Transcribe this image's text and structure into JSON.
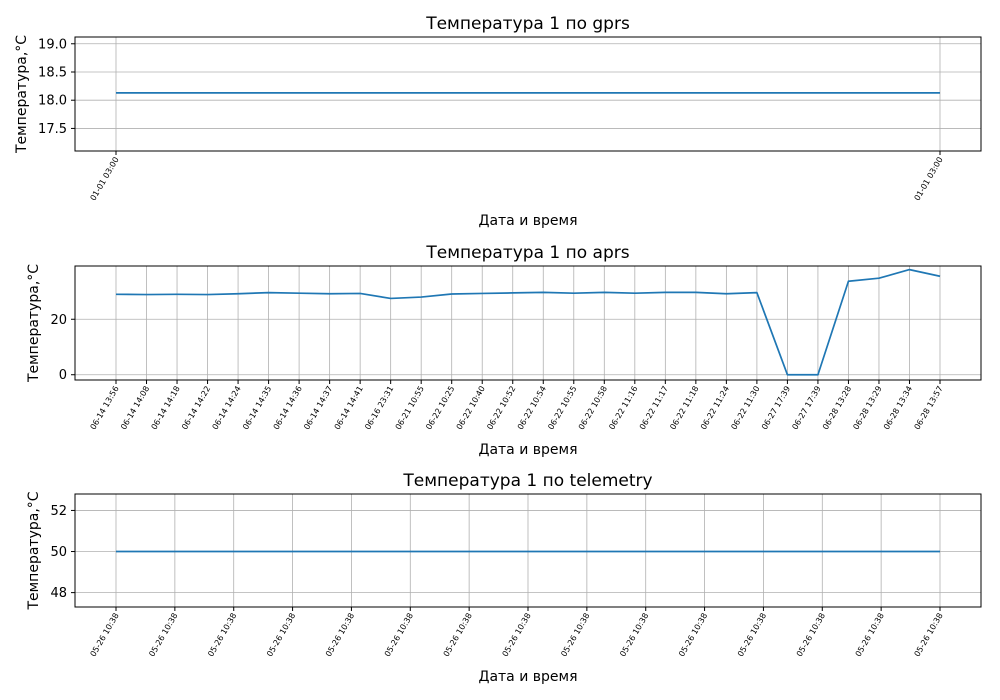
{
  "colors": {
    "series": "#1f77b4"
  },
  "chart_data": [
    {
      "type": "line",
      "title": "Температура 1 по gprs",
      "xlabel": "Дата и время",
      "ylabel": "Температура,°C",
      "x": [
        "01-01 03:00",
        "01-01 03:00"
      ],
      "series": [
        {
          "values": [
            18.13,
            18.13
          ]
        }
      ],
      "ylim": [
        17.1,
        19.12
      ],
      "yticks": [
        17.5,
        18.0,
        18.5,
        19.0
      ],
      "ytick_labels": [
        "17.5",
        "18.0",
        "18.5",
        "19.0"
      ],
      "grid": true
    },
    {
      "type": "line",
      "title": "Температура 1 по aprs",
      "xlabel": "Дата и время",
      "ylabel": "Температура,°C",
      "x": [
        "06-14 13:56",
        "06-14 14:08",
        "06-14 14:18",
        "06-14 14:22",
        "06-14 14:24",
        "06-14 14:35",
        "06-14 14:36",
        "06-14 14:37",
        "06-14 14:41",
        "06-16 23:31",
        "06-21 10:55",
        "06-22 10:25",
        "06-22 10:40",
        "06-22 10:52",
        "06-22 10:54",
        "06-22 10:55",
        "06-22 10:58",
        "06-22 11:16",
        "06-22 11:17",
        "06-22 11:18",
        "06-22 11:24",
        "06-22 11:30",
        "06-27 17:39",
        "06-27 17:39",
        "06-28 13:28",
        "06-28 13:29",
        "06-28 13:34",
        "06-28 13:57"
      ],
      "series": [
        {
          "values": [
            29,
            28.9,
            29,
            28.9,
            29.2,
            29.6,
            29.4,
            29.2,
            29.3,
            27.5,
            28,
            29.1,
            29.3,
            29.5,
            29.7,
            29.4,
            29.7,
            29.4,
            29.7,
            29.7,
            29.2,
            29.6,
            0,
            0,
            33.7,
            34.8,
            37.9,
            35.5
          ]
        }
      ],
      "ylim": [
        -1.9,
        39.2
      ],
      "yticks": [
        0,
        20
      ],
      "ytick_labels": [
        "0",
        "20"
      ],
      "grid": true
    },
    {
      "type": "line",
      "title": "Температура 1 по telemetry",
      "xlabel": "Дата и время",
      "ylabel": "Температура,°C",
      "x": [
        "05-26 10:38",
        "05-26 10:38",
        "05-26 10:38",
        "05-26 10:38",
        "05-26 10:38",
        "05-26 10:38",
        "05-26 10:38",
        "05-26 10:38",
        "05-26 10:38",
        "05-26 10:38",
        "05-26 10:38",
        "05-26 10:38",
        "05-26 10:38",
        "05-26 10:38",
        "05-26 10:38"
      ],
      "series": [
        {
          "values": [
            50,
            50,
            50,
            50,
            50,
            50,
            50,
            50,
            50,
            50,
            50,
            50,
            50,
            50,
            50
          ]
        }
      ],
      "ylim": [
        47.3,
        52.8
      ],
      "yticks": [
        48,
        50,
        52
      ],
      "ytick_labels": [
        "48",
        "50",
        "52"
      ],
      "grid": true
    }
  ]
}
